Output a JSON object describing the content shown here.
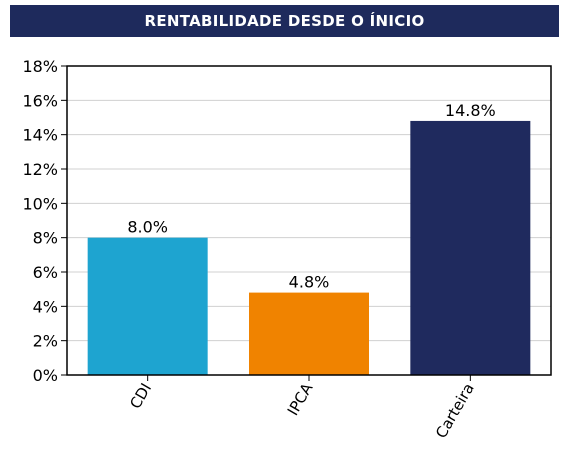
{
  "title": "RENTABILIDADE DESDE O ÍNICIO",
  "colors": {
    "title_bg": "#1e2a5c",
    "grid": "#d0d0d0",
    "axis": "#000000"
  },
  "chart_data": {
    "type": "bar",
    "title": "RENTABILIDADE DESDE O ÍNICIO",
    "xlabel": "",
    "ylabel": "",
    "categories": [
      "CDI",
      "IPCA",
      "Carteira"
    ],
    "values": [
      8.0,
      4.8,
      14.8
    ],
    "value_labels": [
      "8.0%",
      "4.8%",
      "14.8%"
    ],
    "bar_colors": [
      "#1ea4d0",
      "#f08300",
      "#1f2a5e"
    ],
    "ylim": [
      0,
      18
    ],
    "yticks": [
      0,
      2,
      4,
      6,
      8,
      10,
      12,
      14,
      16,
      18
    ],
    "ytick_labels": [
      "0%",
      "2%",
      "4%",
      "6%",
      "8%",
      "10%",
      "12%",
      "14%",
      "16%",
      "18%"
    ],
    "grid": true,
    "legend": "none"
  }
}
